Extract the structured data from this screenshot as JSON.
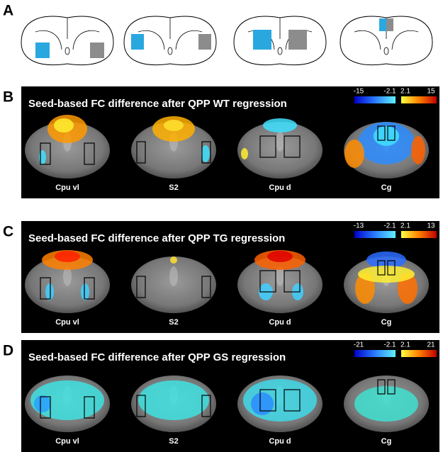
{
  "panels": [
    {
      "label": "A"
    },
    {
      "label": "B",
      "title": "Seed-based FC difference after QPP WT regression",
      "colorbar": [
        "-15",
        "-2.1",
        "2.1",
        "15"
      ],
      "regions": [
        "Cpu vl",
        "S2",
        "Cpu d",
        "Cg"
      ]
    },
    {
      "label": "C",
      "title": "Seed-based FC difference after QPP TG regression",
      "colorbar": [
        "-13",
        "-2.1",
        "2.1",
        "13"
      ],
      "regions": [
        "Cpu vl",
        "S2",
        "Cpu d",
        "Cg"
      ]
    },
    {
      "label": "D",
      "title": "Seed-based FC difference after QPP GS regression",
      "colorbar": [
        "-21",
        "-2.1",
        "2.1",
        "21"
      ],
      "regions": [
        "Cpu vl",
        "S2",
        "Cpu d",
        "Cg"
      ]
    }
  ]
}
